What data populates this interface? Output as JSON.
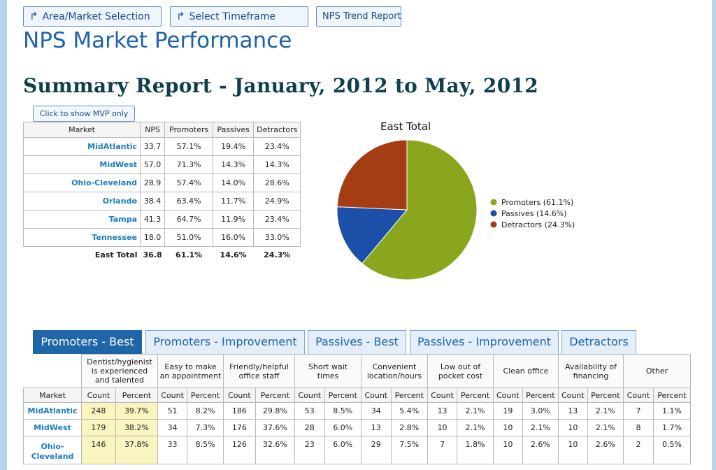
{
  "nav": {
    "area_label": "Area/Market Selection",
    "timeframe_label": "Select Timeframe",
    "trend_label": "NPS Trend Report"
  },
  "page_title": "NPS Market Performance",
  "report_title": "Summary Report - January, 2012 to May, 2012",
  "mvp_button": "Click to show MVP only",
  "summary": {
    "headers": [
      "Market",
      "NPS",
      "Promoters",
      "Passives",
      "Detractors"
    ],
    "rows": [
      {
        "market": "MidAtlantic",
        "nps": "33.7",
        "promoters": "57.1%",
        "passives": "19.4%",
        "detractors": "23.4%"
      },
      {
        "market": "MidWest",
        "nps": "57.0",
        "promoters": "71.3%",
        "passives": "14.3%",
        "detractors": "14.3%"
      },
      {
        "market": "Ohio-Cleveland",
        "nps": "28.9",
        "promoters": "57.4%",
        "passives": "14.0%",
        "detractors": "28.6%"
      },
      {
        "market": "Orlando",
        "nps": "38.4",
        "promoters": "63.4%",
        "passives": "11.7%",
        "detractors": "24.9%"
      },
      {
        "market": "Tampa",
        "nps": "41.3",
        "promoters": "64.7%",
        "passives": "11.9%",
        "detractors": "23.4%"
      },
      {
        "market": "Tennessee",
        "nps": "18.0",
        "promoters": "51.0%",
        "passives": "16.0%",
        "detractors": "33.0%"
      }
    ],
    "total": {
      "market": "East Total",
      "nps": "36.8",
      "promoters": "61.1%",
      "passives": "14.6%",
      "detractors": "24.3%"
    }
  },
  "chart_data": {
    "type": "pie",
    "title": "East Total",
    "legend_position": "right",
    "slices": [
      {
        "label": "Promoters (61.1%)",
        "value": 61.1,
        "color": "#8aa61c"
      },
      {
        "label": "Passives (14.6%)",
        "value": 14.6,
        "color": "#1c4fa8"
      },
      {
        "label": "Detractors (24.3%)",
        "value": 24.3,
        "color": "#a53d14"
      }
    ]
  },
  "tabs": [
    {
      "label": "Promoters - Best",
      "active": true
    },
    {
      "label": "Promoters - Improvement",
      "active": false
    },
    {
      "label": "Passives - Best",
      "active": false
    },
    {
      "label": "Passives - Improvement",
      "active": false
    },
    {
      "label": "Detractors",
      "active": false
    }
  ],
  "detail": {
    "reasons": [
      "Dentist/hygienist is experienced and talented",
      "Easy to make an appointment",
      "Friendly/helpful office staff",
      "Short wait times",
      "Convenient location/hours",
      "Low out of pocket cost",
      "Clean office",
      "Availability of financing",
      "Other"
    ],
    "market_header": "Market",
    "count_header": "Count",
    "percent_header": "Percent",
    "rows": [
      {
        "market": "MidAtlantic",
        "cells": [
          "248",
          "39.7%",
          "51",
          "8.2%",
          "186",
          "29.8%",
          "53",
          "8.5%",
          "34",
          "5.4%",
          "13",
          "2.1%",
          "19",
          "3.0%",
          "13",
          "2.1%",
          "7",
          "1.1%"
        ]
      },
      {
        "market": "MidWest",
        "cells": [
          "179",
          "38.2%",
          "34",
          "7.3%",
          "176",
          "37.6%",
          "28",
          "6.0%",
          "13",
          "2.8%",
          "10",
          "2.1%",
          "10",
          "2.1%",
          "10",
          "2.1%",
          "8",
          "1.7%"
        ]
      },
      {
        "market": "Ohio-Cleveland",
        "cells": [
          "146",
          "37.8%",
          "33",
          "8.5%",
          "126",
          "32.6%",
          "23",
          "6.0%",
          "29",
          "7.5%",
          "7",
          "1.8%",
          "10",
          "2.6%",
          "10",
          "2.6%",
          "2",
          "0.5%"
        ]
      }
    ]
  }
}
